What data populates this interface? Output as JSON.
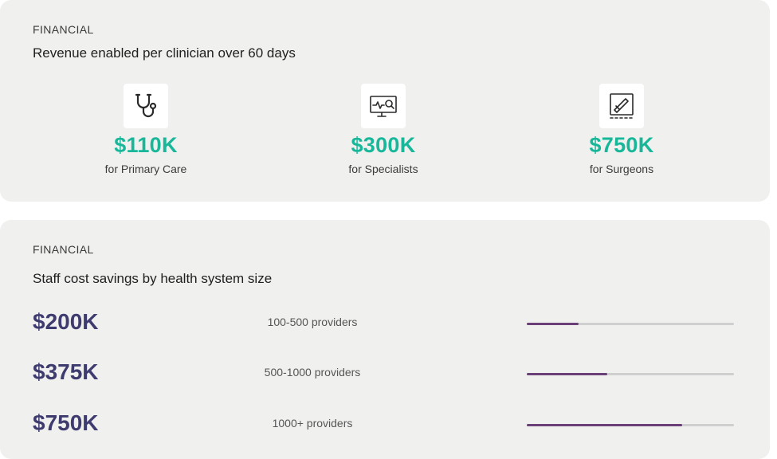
{
  "revenue_card": {
    "eyebrow": "FINANCIAL",
    "title": "Revenue enabled per clinician over 60 days",
    "metrics": [
      {
        "icon": "stethoscope-icon",
        "value": "$110K",
        "label": "for Primary Care"
      },
      {
        "icon": "monitor-search-icon",
        "value": "$300K",
        "label": "for Specialists"
      },
      {
        "icon": "scalpel-icon",
        "value": "$750K",
        "label": "for Surgeons"
      }
    ]
  },
  "savings_card": {
    "eyebrow": "FINANCIAL",
    "title": "Staff cost savings by health system size",
    "rows": [
      {
        "value": "$200K",
        "label": "100-500 providers",
        "progress": 0.25
      },
      {
        "value": "$375K",
        "label": "500-1000 providers",
        "progress": 0.39
      },
      {
        "value": "$750K",
        "label": "1000+ providers",
        "progress": 0.75
      }
    ]
  },
  "colors": {
    "accent_green": "#19b79a",
    "value_purple": "#3e3b6e",
    "bar_fill": "#6b3f78",
    "bar_track": "#cfcfcf",
    "card_bg": "#f0f0ef"
  }
}
